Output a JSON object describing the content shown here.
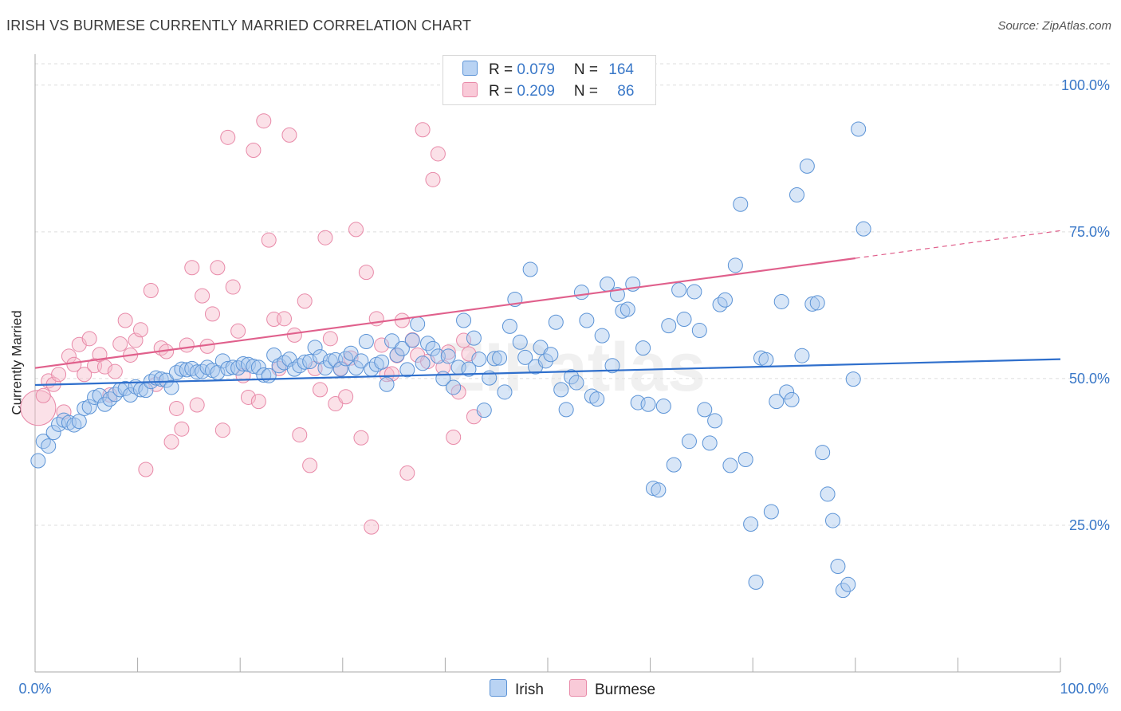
{
  "header": {
    "title": "IRISH VS BURMESE CURRENTLY MARRIED CORRELATION CHART",
    "source": "Source: ZipAtlas.com"
  },
  "legend": {
    "irish": {
      "r_label": "R = ",
      "r_value": "0.079",
      "n_label": "N = ",
      "n_value": "164"
    },
    "burmese": {
      "r_label": "R = ",
      "r_value": "0.209",
      "n_label": "N = ",
      "n_value": "86"
    }
  },
  "bottom_legend": {
    "irish": "Irish",
    "burmese": "Burmese"
  },
  "colors": {
    "irish_fill": "#a9c8ee",
    "irish_stroke": "#5b93d6",
    "irish_line": "#2f6fcc",
    "burmese_fill": "#f7bccd",
    "burmese_stroke": "#e889a8",
    "burmese_line": "#e0608c",
    "axis_text": "#3a78c8",
    "grid": "#dddddd"
  },
  "chart_data": {
    "type": "scatter",
    "title": "IRISH VS BURMESE CURRENTLY MARRIED CORRELATION CHART",
    "xlabel": "",
    "ylabel": "Currently Married",
    "xlim": [
      0,
      100
    ],
    "ylim": [
      0,
      105
    ],
    "x_tick_labels": [
      "0.0%",
      "100.0%"
    ],
    "y_ticks": [
      25,
      50,
      75,
      100
    ],
    "y_tick_labels": [
      "25.0%",
      "50.0%",
      "75.0%",
      "100.0%"
    ],
    "grid": true,
    "watermark": "ZIPatlas",
    "series": [
      {
        "name": "Irish",
        "r": 0.079,
        "n": 164,
        "trend": {
          "x": [
            0,
            100
          ],
          "y": [
            48.9,
            53.3
          ]
        },
        "points": [
          [
            0.3,
            36
          ],
          [
            0.8,
            39.3
          ],
          [
            1.3,
            38.5
          ],
          [
            1.8,
            40.8
          ],
          [
            2.3,
            42.2
          ],
          [
            2.8,
            42.9
          ],
          [
            3.3,
            42.5
          ],
          [
            3.8,
            42.1
          ],
          [
            4.3,
            42.7
          ],
          [
            4.8,
            44.9
          ],
          [
            5.3,
            45.2
          ],
          [
            5.8,
            46.8
          ],
          [
            6.3,
            47.1
          ],
          [
            6.8,
            45.6
          ],
          [
            7.3,
            46.5
          ],
          [
            7.8,
            47.3
          ],
          [
            8.3,
            48.1
          ],
          [
            8.8,
            48.3
          ],
          [
            9.3,
            47.2
          ],
          [
            9.8,
            48.6
          ],
          [
            10.3,
            48.1
          ],
          [
            10.8,
            48.0
          ],
          [
            11.3,
            49.5
          ],
          [
            11.8,
            50.1
          ],
          [
            12.3,
            49.9
          ],
          [
            12.8,
            49.7
          ],
          [
            13.3,
            48.5
          ],
          [
            13.8,
            51.0
          ],
          [
            14.3,
            51.6
          ],
          [
            14.8,
            51.5
          ],
          [
            15.3,
            51.7
          ],
          [
            15.8,
            51.1
          ],
          [
            16.3,
            51.2
          ],
          [
            16.8,
            51.9
          ],
          [
            17.3,
            51.4
          ],
          [
            17.8,
            51.0
          ],
          [
            18.3,
            53.0
          ],
          [
            18.8,
            51.7
          ],
          [
            19.3,
            51.9
          ],
          [
            19.8,
            51.8
          ],
          [
            20.3,
            52.5
          ],
          [
            20.8,
            52.4
          ],
          [
            21.3,
            52.1
          ],
          [
            21.8,
            51.9
          ],
          [
            22.3,
            50.6
          ],
          [
            22.8,
            50.5
          ],
          [
            23.3,
            54.0
          ],
          [
            23.8,
            52.2
          ],
          [
            24.3,
            52.7
          ],
          [
            24.8,
            53.3
          ],
          [
            25.3,
            51.6
          ],
          [
            25.8,
            52.2
          ],
          [
            26.3,
            52.8
          ],
          [
            26.8,
            52.9
          ],
          [
            27.3,
            55.3
          ],
          [
            27.8,
            53.7
          ],
          [
            28.3,
            51.8
          ],
          [
            28.8,
            53.0
          ],
          [
            29.3,
            53.2
          ],
          [
            29.8,
            51.6
          ],
          [
            30.3,
            53.4
          ],
          [
            30.8,
            54.3
          ],
          [
            31.3,
            51.8
          ],
          [
            31.8,
            53.0
          ],
          [
            32.3,
            56.3
          ],
          [
            32.8,
            51.6
          ],
          [
            33.3,
            52.4
          ],
          [
            33.8,
            52.8
          ],
          [
            34.3,
            49.0
          ],
          [
            34.8,
            56.4
          ],
          [
            35.3,
            54.0
          ],
          [
            35.8,
            55.1
          ],
          [
            36.3,
            51.5
          ],
          [
            36.8,
            56.5
          ],
          [
            37.3,
            59.3
          ],
          [
            37.8,
            52.6
          ],
          [
            38.3,
            56.0
          ],
          [
            38.8,
            55.1
          ],
          [
            39.3,
            53.8
          ],
          [
            39.8,
            50.0
          ],
          [
            40.3,
            53.8
          ],
          [
            40.8,
            48.5
          ],
          [
            41.3,
            51.9
          ],
          [
            41.8,
            59.9
          ],
          [
            42.3,
            51.6
          ],
          [
            42.8,
            56.9
          ],
          [
            43.3,
            53.3
          ],
          [
            43.8,
            44.6
          ],
          [
            44.3,
            50.1
          ],
          [
            44.8,
            53.4
          ],
          [
            45.3,
            53.5
          ],
          [
            45.8,
            47.7
          ],
          [
            46.3,
            58.9
          ],
          [
            46.8,
            63.5
          ],
          [
            47.3,
            56.2
          ],
          [
            47.8,
            53.6
          ],
          [
            48.3,
            68.6
          ],
          [
            48.8,
            52.0
          ],
          [
            49.3,
            55.3
          ],
          [
            49.8,
            53.0
          ],
          [
            50.3,
            54.1
          ],
          [
            50.8,
            59.6
          ],
          [
            51.3,
            48.1
          ],
          [
            51.8,
            44.7
          ],
          [
            52.3,
            50.3
          ],
          [
            52.8,
            49.3
          ],
          [
            53.3,
            64.7
          ],
          [
            53.8,
            59.9
          ],
          [
            54.3,
            47.0
          ],
          [
            54.8,
            46.5
          ],
          [
            55.3,
            57.3
          ],
          [
            55.8,
            66.1
          ],
          [
            56.3,
            52.2
          ],
          [
            56.8,
            64.3
          ],
          [
            57.3,
            61.5
          ],
          [
            57.8,
            61.8
          ],
          [
            58.3,
            66.1
          ],
          [
            58.8,
            45.9
          ],
          [
            59.3,
            55.2
          ],
          [
            59.8,
            45.6
          ],
          [
            60.3,
            31.3
          ],
          [
            60.8,
            31.0
          ],
          [
            61.3,
            45.3
          ],
          [
            61.8,
            59.0
          ],
          [
            62.3,
            35.3
          ],
          [
            62.8,
            65.1
          ],
          [
            63.3,
            60.1
          ],
          [
            63.8,
            39.3
          ],
          [
            64.3,
            64.8
          ],
          [
            64.8,
            58.2
          ],
          [
            65.3,
            44.7
          ],
          [
            65.8,
            39.0
          ],
          [
            66.3,
            42.8
          ],
          [
            66.8,
            62.6
          ],
          [
            67.3,
            63.4
          ],
          [
            67.8,
            35.2
          ],
          [
            68.3,
            69.3
          ],
          [
            68.8,
            79.7
          ],
          [
            69.3,
            36.2
          ],
          [
            69.8,
            25.2
          ],
          [
            70.3,
            15.3
          ],
          [
            70.8,
            53.5
          ],
          [
            71.3,
            53.2
          ],
          [
            71.8,
            27.3
          ],
          [
            72.3,
            46.1
          ],
          [
            72.8,
            63.1
          ],
          [
            73.3,
            47.7
          ],
          [
            73.8,
            46.4
          ],
          [
            74.3,
            81.3
          ],
          [
            74.8,
            53.9
          ],
          [
            75.3,
            86.2
          ],
          [
            75.8,
            62.7
          ],
          [
            76.3,
            62.9
          ],
          [
            76.8,
            37.4
          ],
          [
            77.3,
            30.3
          ],
          [
            77.8,
            25.8
          ],
          [
            78.3,
            18.0
          ],
          [
            78.8,
            13.9
          ],
          [
            79.3,
            14.9
          ],
          [
            79.8,
            49.9
          ],
          [
            80.3,
            92.5
          ],
          [
            80.8,
            75.5
          ]
        ]
      },
      {
        "name": "Burmese",
        "r": 0.209,
        "n": 86,
        "trend": {
          "x": [
            0,
            80
          ],
          "y": [
            51.8,
            70.5
          ]
        },
        "trend_dashed": {
          "x": [
            80,
            100
          ],
          "y": [
            70.5,
            75.2
          ]
        },
        "points": [
          [
            0.3,
            45
          ],
          [
            0.8,
            47.1
          ],
          [
            1.3,
            49.6
          ],
          [
            1.8,
            49.0
          ],
          [
            2.3,
            50.7
          ],
          [
            2.8,
            44.3
          ],
          [
            3.3,
            53.8
          ],
          [
            3.8,
            52.4
          ],
          [
            4.3,
            55.8
          ],
          [
            4.8,
            50.7
          ],
          [
            5.3,
            56.8
          ],
          [
            5.8,
            52.2
          ],
          [
            6.3,
            54.1
          ],
          [
            6.8,
            52.0
          ],
          [
            7.3,
            47.2
          ],
          [
            7.8,
            51.2
          ],
          [
            8.3,
            55.9
          ],
          [
            8.8,
            59.9
          ],
          [
            9.3,
            54.0
          ],
          [
            9.8,
            56.5
          ],
          [
            10.3,
            58.3
          ],
          [
            10.8,
            34.5
          ],
          [
            11.3,
            65.0
          ],
          [
            11.8,
            49.0
          ],
          [
            12.3,
            55.2
          ],
          [
            12.8,
            54.6
          ],
          [
            13.3,
            39.2
          ],
          [
            13.8,
            44.9
          ],
          [
            14.3,
            41.4
          ],
          [
            14.8,
            55.7
          ],
          [
            15.3,
            68.9
          ],
          [
            15.8,
            45.5
          ],
          [
            16.3,
            64.1
          ],
          [
            16.8,
            55.5
          ],
          [
            17.3,
            61.0
          ],
          [
            17.8,
            68.9
          ],
          [
            18.3,
            41.2
          ],
          [
            18.8,
            91.1
          ],
          [
            19.3,
            65.6
          ],
          [
            19.8,
            58.1
          ],
          [
            20.3,
            50.5
          ],
          [
            20.8,
            46.8
          ],
          [
            21.3,
            88.9
          ],
          [
            21.8,
            46.1
          ],
          [
            22.3,
            93.9
          ],
          [
            22.8,
            73.6
          ],
          [
            23.3,
            60.1
          ],
          [
            23.8,
            51.7
          ],
          [
            24.3,
            60.2
          ],
          [
            24.8,
            91.5
          ],
          [
            25.3,
            57.4
          ],
          [
            25.8,
            40.4
          ],
          [
            26.3,
            63.2
          ],
          [
            26.8,
            35.2
          ],
          [
            27.3,
            51.7
          ],
          [
            27.8,
            48.1
          ],
          [
            28.3,
            74.0
          ],
          [
            28.8,
            56.8
          ],
          [
            29.3,
            45.7
          ],
          [
            29.8,
            51.7
          ],
          [
            30.3,
            46.9
          ],
          [
            30.8,
            53.5
          ],
          [
            31.3,
            75.4
          ],
          [
            31.8,
            39.9
          ],
          [
            32.3,
            68.1
          ],
          [
            32.8,
            24.7
          ],
          [
            33.3,
            60.2
          ],
          [
            33.8,
            55.7
          ],
          [
            34.3,
            50.7
          ],
          [
            34.8,
            50.8
          ],
          [
            35.3,
            53.9
          ],
          [
            35.8,
            59.9
          ],
          [
            36.3,
            33.9
          ],
          [
            36.8,
            56.6
          ],
          [
            37.3,
            54.0
          ],
          [
            37.8,
            92.4
          ],
          [
            38.3,
            52.9
          ],
          [
            38.8,
            83.9
          ],
          [
            39.3,
            88.3
          ],
          [
            39.8,
            51.9
          ],
          [
            40.3,
            54.5
          ],
          [
            40.8,
            40.0
          ],
          [
            41.3,
            47.7
          ],
          [
            41.8,
            56.5
          ],
          [
            42.3,
            54.2
          ],
          [
            42.8,
            43.5
          ]
        ]
      }
    ]
  }
}
